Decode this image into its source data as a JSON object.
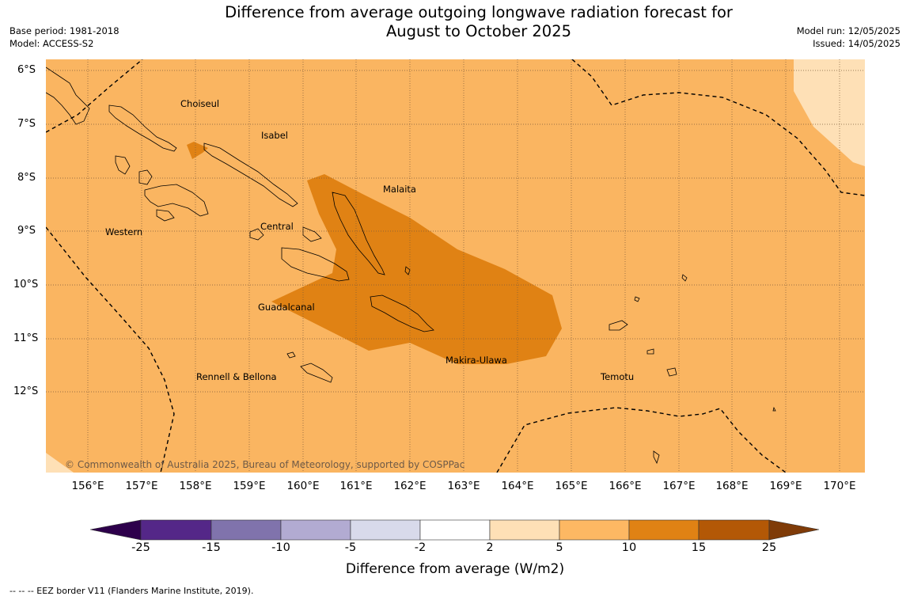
{
  "header": {
    "title_line1": "Difference from average outgoing longwave radiation forecast for",
    "title_line2": "August to October 2025",
    "base_period": "Base period: 1981-2018",
    "model": "Model: ACCESS-S2",
    "model_run": "Model run: 12/05/2025",
    "issued": "Issued: 14/05/2025"
  },
  "map": {
    "lat_labels": [
      "6°S",
      "7°S",
      "8°S",
      "9°S",
      "10°S",
      "11°S",
      "12°S"
    ],
    "lon_labels": [
      "156°E",
      "157°E",
      "158°E",
      "159°E",
      "160°E",
      "161°E",
      "162°E",
      "163°E",
      "164°E",
      "165°E",
      "166°E",
      "167°E",
      "168°E",
      "169°E",
      "170°E"
    ],
    "regions": {
      "choiseul": "Choiseul",
      "isabel": "Isabel",
      "malaita": "Malaita",
      "western": "Western",
      "central": "Central",
      "guadalcanal": "Guadalcanal",
      "makira_ulawa": "Makira-Ulawa",
      "temotu": "Temotu",
      "rennell_bellona": "Rennell & Bellona"
    },
    "copyright": "© Commonwealth of Australia 2025, Bureau of Meteorology, supported by COSPPac",
    "colors": {
      "background": "#fab561",
      "band_2_5": "#fee0b6",
      "band_5_10": "#fab561",
      "band_10_15": "#e08214",
      "grid": "#7a5a3a"
    }
  },
  "colorbar": {
    "ticks": [
      "-25",
      "-15",
      "-10",
      "-5",
      "-2",
      "2",
      "5",
      "10",
      "15",
      "25"
    ],
    "colors": [
      "#2d004b",
      "#542788",
      "#8073ac",
      "#b2abd2",
      "#d8daeb",
      "#ffffff",
      "#fee0b6",
      "#fdb863",
      "#e08214",
      "#b35806",
      "#7f3b08"
    ],
    "label": "Difference from average (W/m2)"
  },
  "footer": {
    "eez_note": "--  --  -- EEZ border V11 (Flanders Marine Institute, 2019)."
  }
}
